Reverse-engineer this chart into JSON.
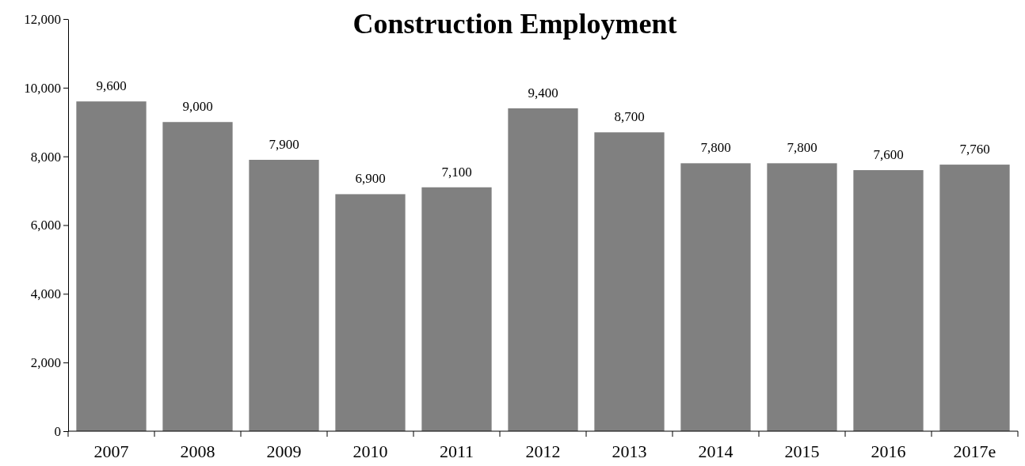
{
  "chart_data": {
    "type": "bar",
    "title": "Construction Employment",
    "categories": [
      "2007",
      "2008",
      "2009",
      "2010",
      "2011",
      "2012",
      "2013",
      "2014",
      "2015",
      "2016",
      "2017e"
    ],
    "values": [
      9600,
      9000,
      7900,
      6900,
      7100,
      9400,
      8700,
      7800,
      7800,
      7600,
      7760
    ],
    "color": "#808080",
    "ylim": [
      0,
      12000
    ],
    "yticks": [
      {
        "value": 0,
        "label": "0"
      },
      {
        "value": 2000,
        "label": "2,000"
      },
      {
        "value": 4000,
        "label": "4,000"
      },
      {
        "value": 6000,
        "label": "6,000"
      },
      {
        "value": 8000,
        "label": "8,000"
      },
      {
        "value": 10000,
        "label": "10,000"
      },
      {
        "value": 12000,
        "label": "12,000"
      }
    ],
    "value_labels": [
      "9,600",
      "9,000",
      "7,900",
      "6,900",
      "7,100",
      "9,400",
      "8,700",
      "7,800",
      "7,800",
      "7,600",
      "7,760"
    ]
  }
}
